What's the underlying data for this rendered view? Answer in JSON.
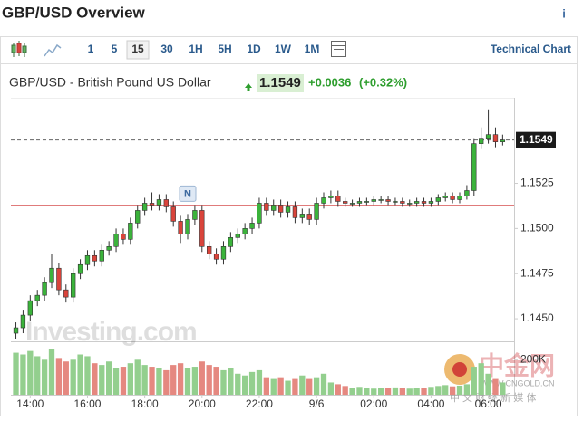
{
  "page": {
    "title": "GBP/USD Overview",
    "info": "i",
    "toolbar": [
      "1",
      "5",
      "15",
      "30",
      "1H",
      "5H",
      "1D",
      "1W",
      "1M"
    ],
    "active_interval": "15",
    "technical_link": "Technical Chart",
    "quote": {
      "name": "GBP/USD - British Pound US Dollar",
      "price": "1.1549",
      "change": "+0.0036",
      "change_pct": "(+0.32%)"
    },
    "watermark": "Investing.com",
    "corner_logo": {
      "name": "中金网",
      "url": "WWW.CNGOLD.CN",
      "tagline": "中 文 财 经 新 媒 体"
    }
  },
  "chart_data": {
    "type": "candlestick",
    "candles": {
      "open": [
        1.1442,
        1.1445,
        1.1452,
        1.146,
        1.1463,
        1.147,
        1.1478,
        1.1466,
        1.1462,
        1.1475,
        1.148,
        1.1485,
        1.1482,
        1.1488,
        1.149,
        1.1497,
        1.1494,
        1.1503,
        1.151,
        1.1514,
        1.1513,
        1.1516,
        1.1512,
        1.1504,
        1.1497,
        1.1505,
        1.151,
        1.149,
        1.1486,
        1.1483,
        1.149,
        1.1495,
        1.1497,
        1.15,
        1.1503,
        1.1514,
        1.151,
        1.1513,
        1.1509,
        1.1512,
        1.1506,
        1.1508,
        1.1505,
        1.1514,
        1.1517,
        1.1518,
        1.1515,
        1.1514,
        1.1514,
        1.1515,
        1.1515,
        1.1516,
        1.1516,
        1.1515,
        1.1515,
        1.1514,
        1.1514,
        1.1515,
        1.1514,
        1.1515,
        1.1517,
        1.1518,
        1.1516,
        1.1518,
        1.1521,
        1.1547,
        1.155,
        1.1552,
        1.1548
      ],
      "high": [
        1.1448,
        1.1455,
        1.1463,
        1.1466,
        1.1473,
        1.1486,
        1.1481,
        1.1469,
        1.1478,
        1.1483,
        1.1488,
        1.1488,
        1.1491,
        1.1493,
        1.15,
        1.15,
        1.1506,
        1.1513,
        1.1517,
        1.152,
        1.1519,
        1.1519,
        1.1515,
        1.1507,
        1.1508,
        1.1513,
        1.1513,
        1.1493,
        1.1489,
        1.1493,
        1.1498,
        1.15,
        1.1503,
        1.1506,
        1.1517,
        1.1517,
        1.1516,
        1.1516,
        1.1515,
        1.1515,
        1.1511,
        1.1511,
        1.1517,
        1.152,
        1.1521,
        1.1521,
        1.1517,
        1.1516,
        1.1517,
        1.1517,
        1.1518,
        1.1518,
        1.1518,
        1.1517,
        1.1517,
        1.1516,
        1.1517,
        1.1517,
        1.1517,
        1.1519,
        1.152,
        1.152,
        1.152,
        1.1524,
        1.155,
        1.1556,
        1.1566,
        1.1556,
        1.1552
      ],
      "low": [
        1.1439,
        1.1442,
        1.1449,
        1.1457,
        1.146,
        1.1467,
        1.1463,
        1.1459,
        1.1459,
        1.1472,
        1.1477,
        1.1479,
        1.1479,
        1.1485,
        1.1487,
        1.1491,
        1.1491,
        1.15,
        1.1507,
        1.151,
        1.151,
        1.1509,
        1.1501,
        1.1492,
        1.1494,
        1.1502,
        1.1487,
        1.1483,
        1.148,
        1.148,
        1.1487,
        1.1492,
        1.1494,
        1.1497,
        1.15,
        1.1507,
        1.1507,
        1.1506,
        1.1506,
        1.1503,
        1.1503,
        1.1502,
        1.1502,
        1.1511,
        1.1514,
        1.1512,
        1.1512,
        1.1512,
        1.1512,
        1.1513,
        1.1513,
        1.1514,
        1.1513,
        1.1513,
        1.1512,
        1.1512,
        1.1512,
        1.1512,
        1.1512,
        1.1513,
        1.1515,
        1.1514,
        1.1514,
        1.1516,
        1.1518,
        1.1544,
        1.1547,
        1.1545,
        1.1546
      ],
      "close": [
        1.1445,
        1.1452,
        1.146,
        1.1463,
        1.147,
        1.1478,
        1.1466,
        1.1462,
        1.1475,
        1.148,
        1.1485,
        1.1482,
        1.1488,
        1.149,
        1.1497,
        1.1494,
        1.1503,
        1.151,
        1.1514,
        1.1513,
        1.1516,
        1.1512,
        1.1504,
        1.1497,
        1.1505,
        1.151,
        1.149,
        1.1486,
        1.1483,
        1.149,
        1.1495,
        1.1497,
        1.15,
        1.1503,
        1.1514,
        1.151,
        1.1513,
        1.1509,
        1.1512,
        1.1506,
        1.1508,
        1.1505,
        1.1514,
        1.1517,
        1.1518,
        1.1515,
        1.1514,
        1.1514,
        1.1515,
        1.1515,
        1.1516,
        1.1516,
        1.1515,
        1.1515,
        1.1514,
        1.1514,
        1.1515,
        1.1514,
        1.1515,
        1.1517,
        1.1518,
        1.1516,
        1.1518,
        1.1521,
        1.1547,
        1.155,
        1.1552,
        1.1548,
        1.1549
      ]
    },
    "up_color": "#3bb33b",
    "down_color": "#d9443b",
    "xlim": [
      -0.7,
      69.6
    ],
    "xticks": [
      {
        "value": 2,
        "label": "14:00"
      },
      {
        "value": 10,
        "label": "16:00"
      },
      {
        "value": 18,
        "label": "18:00"
      },
      {
        "value": 26,
        "label": "20:00"
      },
      {
        "value": 34,
        "label": "22:00"
      },
      {
        "value": 42,
        "label": "9/6"
      },
      {
        "value": 50,
        "label": "02:00"
      },
      {
        "value": 58,
        "label": "04:00"
      },
      {
        "value": 66,
        "label": "06:00"
      }
    ],
    "ylim": [
      1.14375,
      1.15724
    ],
    "yticks": [
      {
        "value": 1.145,
        "label": "1.1450"
      },
      1.1475,
      {
        "value": 1.15,
        "label": "1.1500"
      },
      1.1525
    ],
    "last_price": 1.1549,
    "prev_close": 1.1513,
    "markers": [
      {
        "index": 24,
        "label": "N"
      }
    ],
    "volume": {
      "values": [
        240000,
        230000,
        250000,
        220000,
        200000,
        260000,
        210000,
        190000,
        200000,
        230000,
        220000,
        180000,
        170000,
        190000,
        150000,
        160000,
        180000,
        200000,
        170000,
        160000,
        150000,
        140000,
        170000,
        180000,
        150000,
        160000,
        190000,
        170000,
        160000,
        140000,
        150000,
        120000,
        110000,
        130000,
        140000,
        100000,
        90000,
        100000,
        80000,
        90000,
        110000,
        90000,
        100000,
        120000,
        70000,
        60000,
        50000,
        40000,
        45000,
        40000,
        35000,
        40000,
        38000,
        42000,
        40000,
        35000,
        38000,
        40000,
        45000,
        50000,
        55000,
        48000,
        52000,
        60000,
        160000,
        180000,
        120000,
        90000,
        70000
      ],
      "up_color": "#93cf8e",
      "down_color": "#e58880",
      "ylim": [
        0,
        305000
      ],
      "yticks": [
        {
          "value": 200000,
          "label": "200K"
        }
      ]
    }
  }
}
